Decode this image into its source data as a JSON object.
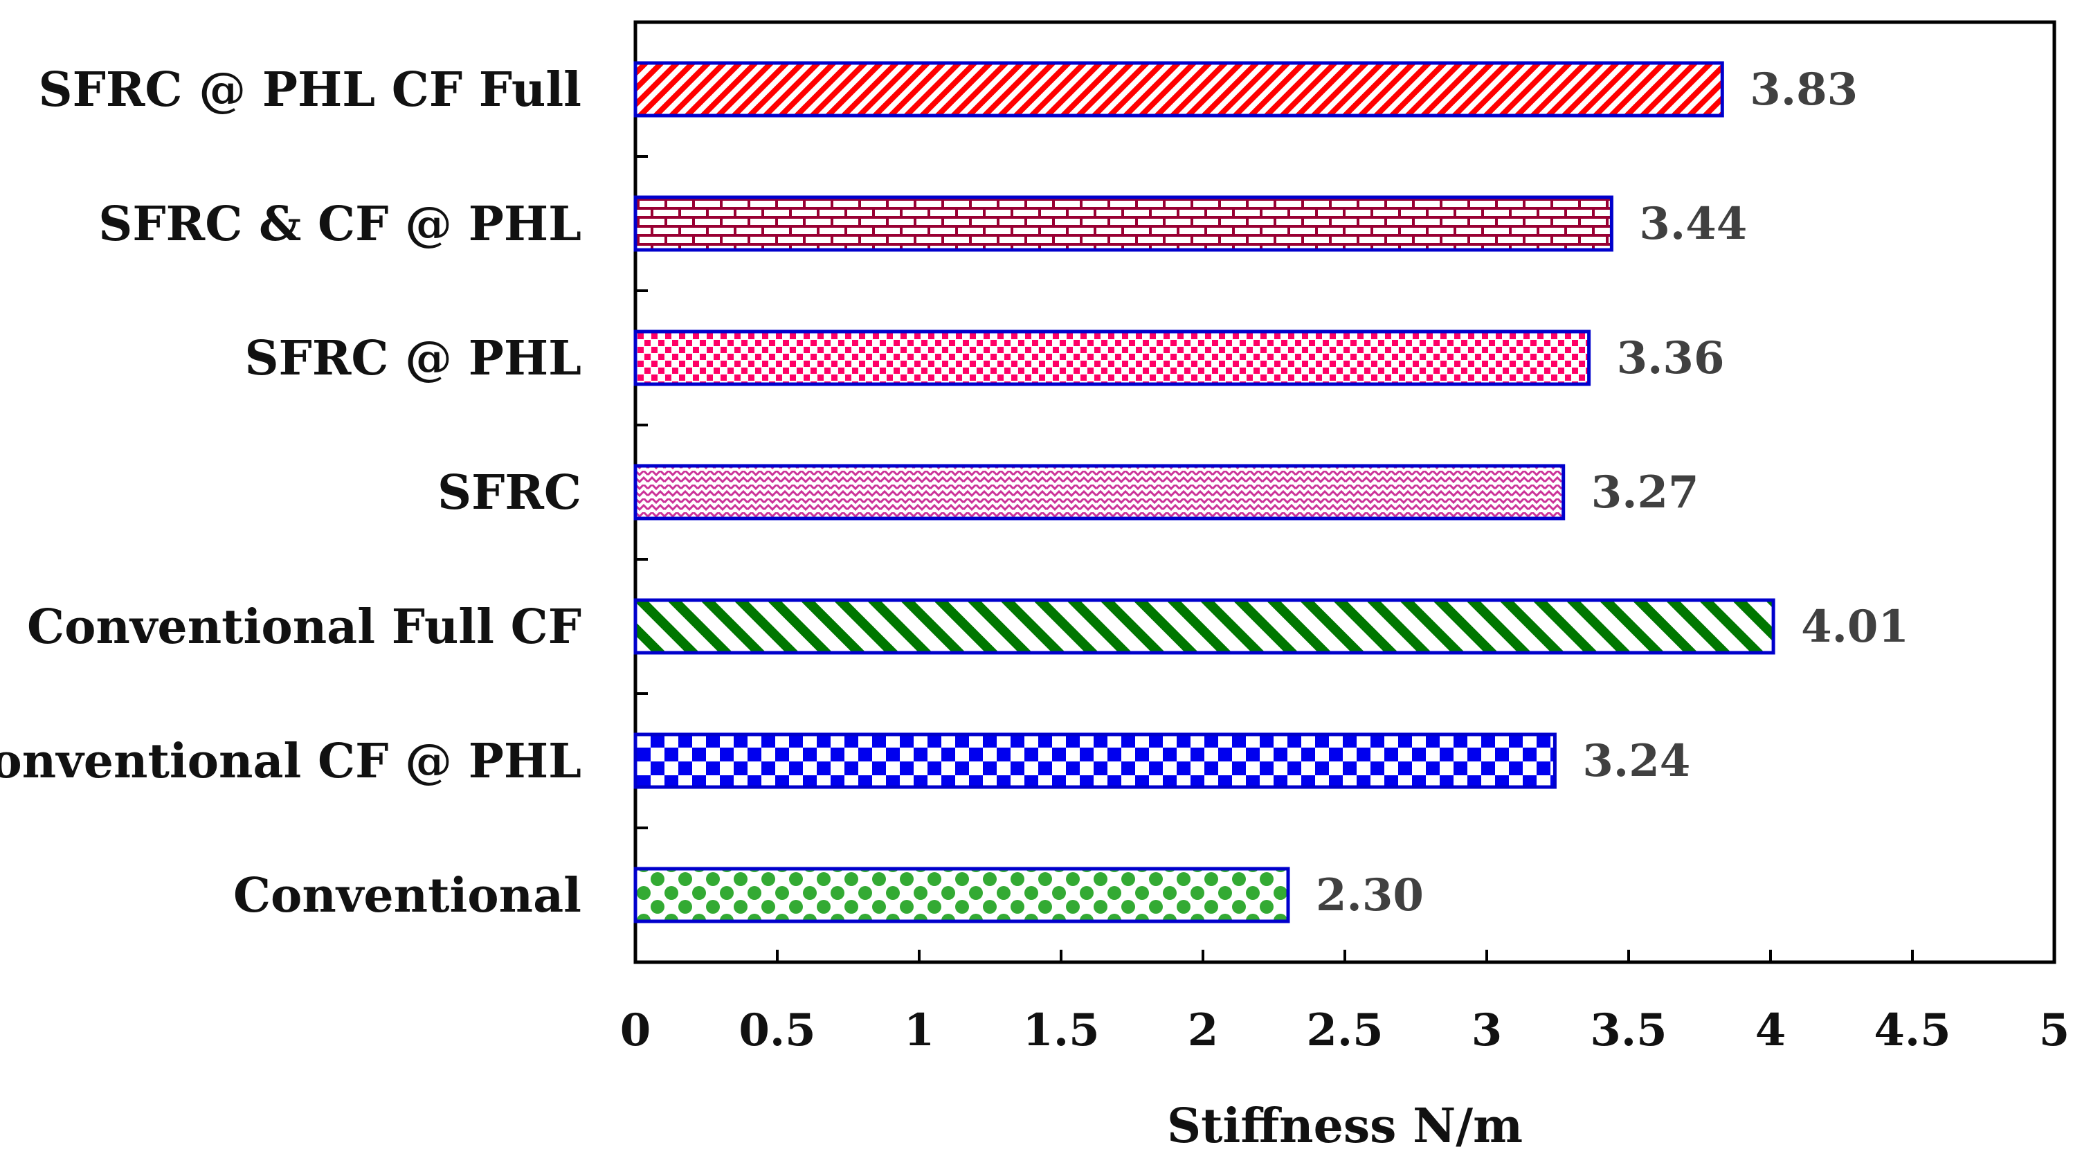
{
  "chart_data": {
    "type": "bar",
    "orientation": "horizontal",
    "title": "",
    "xlabel": "Stiffness N/m",
    "ylabel": "",
    "xlim": [
      0,
      5
    ],
    "xticks": [
      "0",
      "0.5",
      "1",
      "1.5",
      "2",
      "2.5",
      "3",
      "3.5",
      "4",
      "4.5",
      "5"
    ],
    "xtick_values": [
      0,
      0.5,
      1,
      1.5,
      2,
      2.5,
      3,
      3.5,
      4,
      4.5,
      5
    ],
    "grid": false,
    "legend": "none",
    "categories": [
      "SFRC @ PHL CF Full",
      "SFRC & CF @ PHL",
      "SFRC @ PHL",
      "SFRC",
      "Conventional Full CF",
      "Conventional CF @ PHL",
      "Conventional"
    ],
    "values": [
      3.83,
      3.44,
      3.36,
      3.27,
      4.01,
      3.24,
      2.3
    ],
    "value_labels": [
      "3.83",
      "3.44",
      "3.36",
      "3.27",
      "4.01",
      "3.24",
      "2.30"
    ],
    "bar_patterns": [
      "diag-stripes",
      "bricks",
      "dots",
      "zigzag",
      "wide-diag",
      "checker",
      "polka"
    ],
    "bar_colors": [
      "#ff0000",
      "#990033",
      "#ff0066",
      "#cc3399",
      "#007700",
      "#0000ee",
      "#33aa33"
    ],
    "bar_edge_color": "#0000cc"
  }
}
